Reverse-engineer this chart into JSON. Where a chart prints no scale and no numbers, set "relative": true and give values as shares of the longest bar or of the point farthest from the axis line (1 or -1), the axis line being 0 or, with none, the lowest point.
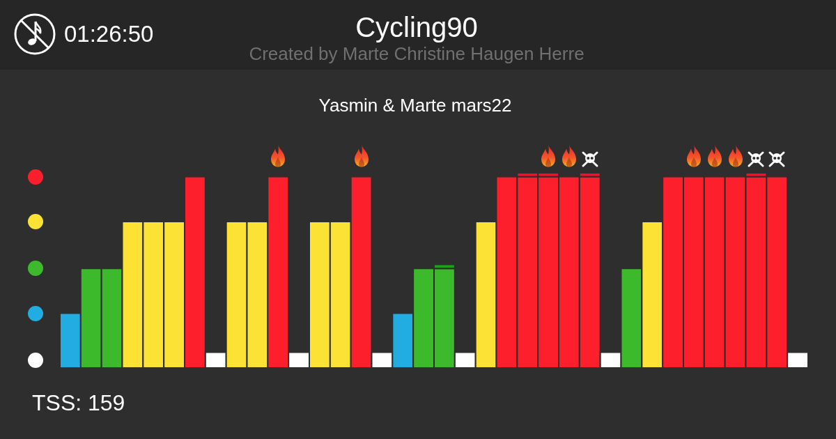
{
  "chart_data": {
    "type": "bar",
    "title": "Cycling90",
    "subtitle": "Created by Marte Christine Haugen Herre",
    "annotations": [
      "Yasmin & Marte mars22",
      "01:26:50",
      "TSS: 159"
    ],
    "relative": true,
    "stacked": true,
    "categories": [
      null,
      null,
      null,
      null,
      null,
      null,
      null,
      null,
      null,
      null,
      null,
      null,
      null,
      null,
      null,
      null,
      null,
      null,
      null,
      null,
      null,
      null,
      null,
      null,
      null,
      null,
      null,
      null,
      null,
      null,
      null,
      null,
      null,
      null,
      null,
      null
    ],
    "series": [
      {
        "values": [
          0.28,
          0.51,
          0.51,
          0.75,
          0.75,
          0.75,
          0.98,
          0.08,
          0.75,
          0.75,
          0.98,
          0.08,
          0.75,
          0.75,
          0.98,
          0.08,
          0.28,
          0.51,
          0.51,
          0.08,
          0.75,
          0.98,
          0.98,
          0.98,
          0.98,
          0.98,
          0.08,
          0.51,
          0.75,
          0.98,
          0.98,
          0.98,
          0.98,
          0.98,
          0.98,
          0.08
        ],
        "colors": [
          "#22ade2",
          "#3dba2b",
          "#3dba2b",
          "#fbe234",
          "#fbe234",
          "#fbe234",
          "#fe1f2c",
          "#ffffff",
          "#fbe234",
          "#fbe234",
          "#fe1f2c",
          "#ffffff",
          "#fbe234",
          "#fbe234",
          "#fe1f2c",
          "#ffffff",
          "#22ade2",
          "#3dba2b",
          "#3dba2b",
          "#ffffff",
          "#fbe234",
          "#fe1f2c",
          "#fe1f2c",
          "#fe1f2c",
          "#fe1f2c",
          "#fe1f2c",
          "#ffffff",
          "#3dba2b",
          "#fbe234",
          "#fe1f2c",
          "#fe1f2c",
          "#fe1f2c",
          "#fe1f2c",
          "#fe1f2c",
          "#fe1f2c",
          "#ffffff"
        ]
      },
      {
        "values": [
          null,
          null,
          null,
          null,
          null,
          null,
          null,
          null,
          null,
          null,
          null,
          null,
          null,
          null,
          null,
          null,
          null,
          null,
          0.02,
          null,
          null,
          null,
          0.02,
          0.02,
          null,
          0.02,
          null,
          null,
          null,
          null,
          null,
          null,
          null,
          0.02,
          null,
          null
        ],
        "colors": [
          null,
          null,
          null,
          null,
          null,
          null,
          null,
          null,
          null,
          null,
          null,
          null,
          null,
          null,
          null,
          null,
          null,
          null,
          "#0aad0a",
          null,
          null,
          null,
          "#ff0a28",
          "#ff0a28",
          null,
          "#ff0a28",
          null,
          null,
          null,
          null,
          null,
          null,
          null,
          "#ff0a28",
          null,
          null
        ]
      }
    ]
  }
}
